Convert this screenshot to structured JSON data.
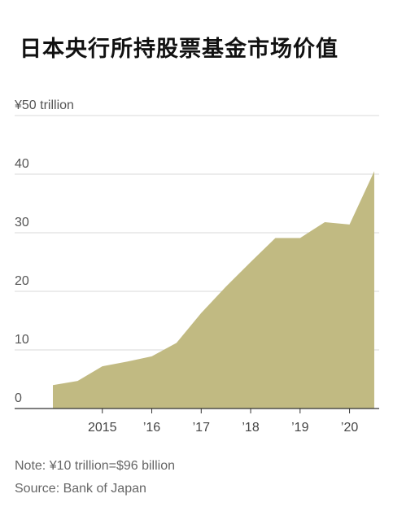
{
  "title": "日本央行所持股票基金市场价值",
  "note": "Note: ¥10 trillion=$96 billion",
  "source": "Source: Bank of Japan",
  "colors": {
    "area": "#c1ba82",
    "grid": "#d9d9d9",
    "axis": "#333333"
  },
  "chart_data": {
    "type": "area",
    "title": "日本央行所持股票基金市场价值",
    "ylim": [
      0,
      50
    ],
    "y_ticks": [
      0,
      10,
      20,
      30,
      40,
      50
    ],
    "y_tick_labels": [
      "0",
      "10",
      "20",
      "30",
      "40",
      "¥50 trillion"
    ],
    "x_ticks": [
      2015,
      2016,
      2017,
      2018,
      2019,
      2020
    ],
    "x_tick_labels": [
      "2015",
      "’16",
      "’17",
      "’18",
      "’19",
      "’20"
    ],
    "xlim": [
      2014.0,
      2020.55
    ],
    "series": [
      {
        "x": [
          2014.0,
          2014.5,
          2015.0,
          2015.5,
          2016.0,
          2016.5,
          2017.0,
          2017.5,
          2018.0,
          2018.5,
          2019.0,
          2019.5,
          2020.0,
          2020.5
        ],
        "values": [
          4.0,
          4.7,
          7.2,
          8.0,
          8.9,
          11.2,
          16.3,
          20.8,
          25.0,
          29.1,
          29.1,
          31.8,
          31.4,
          40.5
        ]
      }
    ]
  }
}
